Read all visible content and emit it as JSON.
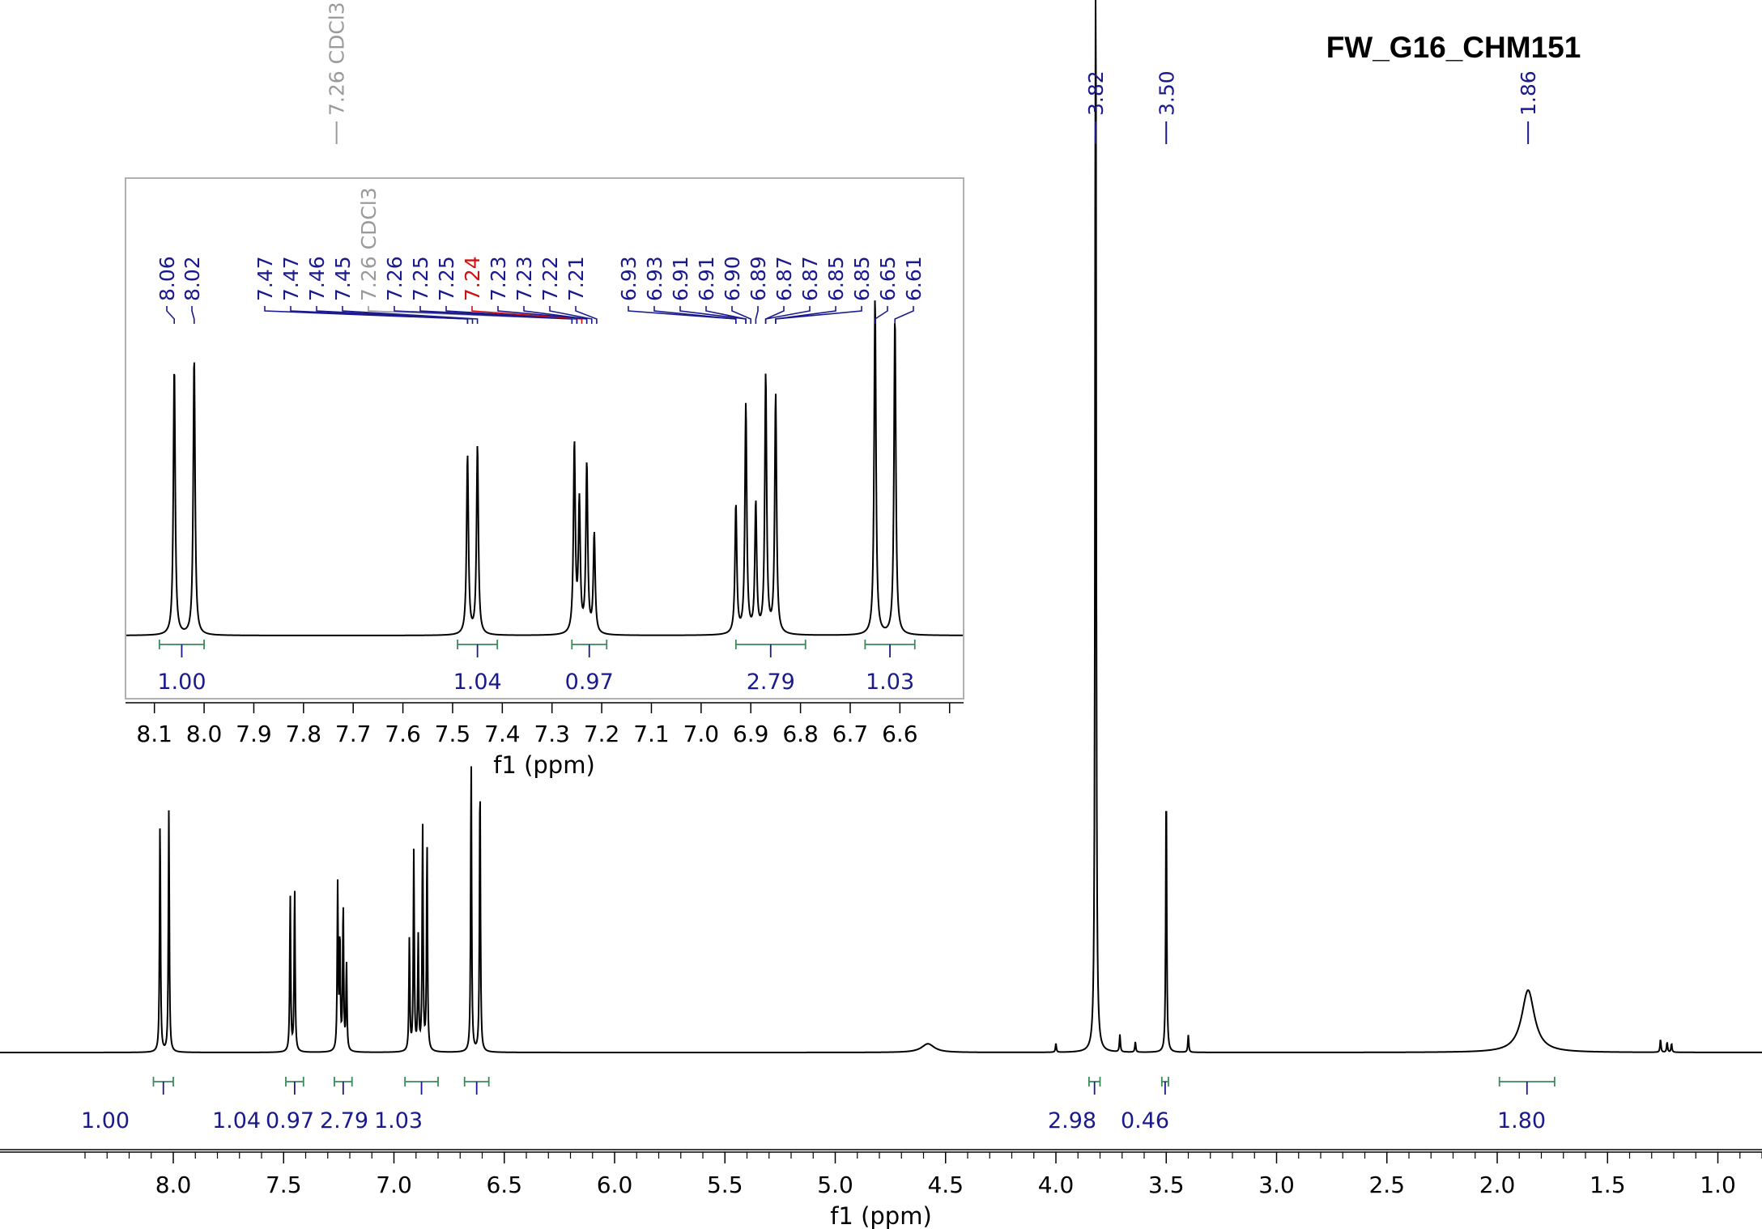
{
  "title": "FW_G16_CHM151",
  "chart_data": {
    "type": "line",
    "spectrum": "1H NMR",
    "xlabel": "f1 (ppm)",
    "xlim": [
      8.4,
      0.8
    ],
    "xticks": [
      "8.0",
      "7.5",
      "7.0",
      "6.5",
      "6.0",
      "5.5",
      "5.0",
      "4.5",
      "4.0",
      "3.5",
      "3.0",
      "2.5",
      "2.0",
      "1.5",
      "1.0"
    ],
    "peak_labels": [
      {
        "ppm": 7.26,
        "label": "7.26 CDCl3",
        "kind": "solvent"
      },
      {
        "ppm": 3.82,
        "label": "3.82",
        "kind": "normal"
      },
      {
        "ppm": 3.5,
        "label": "3.50",
        "kind": "normal"
      },
      {
        "ppm": 1.86,
        "label": "1.86",
        "kind": "normal"
      }
    ],
    "integrals": [
      {
        "from": 8.09,
        "to": 8.0,
        "value": "1.00"
      },
      {
        "from": 7.49,
        "to": 7.41,
        "value": "1.04"
      },
      {
        "from": 7.27,
        "to": 7.19,
        "value": "0.97"
      },
      {
        "from": 6.95,
        "to": 6.8,
        "value": "2.79"
      },
      {
        "from": 6.68,
        "to": 6.57,
        "value": "1.03"
      },
      {
        "from": 3.85,
        "to": 3.8,
        "value": "2.98"
      },
      {
        "from": 3.52,
        "to": 3.49,
        "value": "0.46"
      },
      {
        "from": 1.99,
        "to": 1.74,
        "value": "1.80"
      }
    ],
    "peaks": [
      {
        "ppm": 8.06,
        "height": 0.27
      },
      {
        "ppm": 8.02,
        "height": 0.28
      },
      {
        "ppm": 7.47,
        "height": 0.18
      },
      {
        "ppm": 7.45,
        "height": 0.19
      },
      {
        "ppm": 7.255,
        "height": 0.19
      },
      {
        "ppm": 7.245,
        "height": 0.13
      },
      {
        "ppm": 7.23,
        "height": 0.17
      },
      {
        "ppm": 7.215,
        "height": 0.1
      },
      {
        "ppm": 6.93,
        "height": 0.13
      },
      {
        "ppm": 6.91,
        "height": 0.23
      },
      {
        "ppm": 6.89,
        "height": 0.13
      },
      {
        "ppm": 6.87,
        "height": 0.26
      },
      {
        "ppm": 6.85,
        "height": 0.24
      },
      {
        "ppm": 6.65,
        "height": 0.34
      },
      {
        "ppm": 6.61,
        "height": 0.32
      },
      {
        "ppm": 3.82,
        "height": 1.6
      },
      {
        "ppm": 3.71,
        "height": 0.02
      },
      {
        "ppm": 3.64,
        "height": 0.012
      },
      {
        "ppm": 3.5,
        "height": 0.315
      },
      {
        "ppm": 3.4,
        "height": 0.02
      },
      {
        "ppm": 4.0,
        "height": 0.01
      },
      {
        "ppm": 1.86,
        "height": 0.072,
        "broad": true
      },
      {
        "ppm": 4.58,
        "height": 0.01,
        "broad": true
      },
      {
        "ppm": 1.26,
        "height": 0.015
      },
      {
        "ppm": 1.23,
        "height": 0.012
      },
      {
        "ppm": 1.21,
        "height": 0.01
      }
    ],
    "inset": {
      "xlabel": "f1 (ppm)",
      "xlim": [
        8.15,
        6.48
      ],
      "xticks": [
        "8.1",
        "8.0",
        "7.9",
        "7.8",
        "7.7",
        "7.6",
        "7.5",
        "7.4",
        "7.3",
        "7.2",
        "7.1",
        "7.0",
        "6.9",
        "6.8",
        "6.7",
        "6.6"
      ],
      "peak_labels": [
        {
          "ppm": 8.06,
          "label": "8.06",
          "kind": "normal"
        },
        {
          "ppm": 8.02,
          "label": "8.02",
          "kind": "normal"
        },
        {
          "ppm": 7.47,
          "label": "7.47",
          "kind": "normal"
        },
        {
          "ppm": 7.47,
          "label": "7.47",
          "kind": "normal"
        },
        {
          "ppm": 7.46,
          "label": "7.46",
          "kind": "normal"
        },
        {
          "ppm": 7.45,
          "label": "7.45",
          "kind": "normal"
        },
        {
          "ppm": 7.26,
          "label": "7.26 CDCl3",
          "kind": "solvent"
        },
        {
          "ppm": 7.26,
          "label": "7.26",
          "kind": "normal"
        },
        {
          "ppm": 7.25,
          "label": "7.25",
          "kind": "normal"
        },
        {
          "ppm": 7.25,
          "label": "7.25",
          "kind": "normal"
        },
        {
          "ppm": 7.24,
          "label": "7.24",
          "kind": "highlight"
        },
        {
          "ppm": 7.23,
          "label": "7.23",
          "kind": "normal"
        },
        {
          "ppm": 7.23,
          "label": "7.23",
          "kind": "normal"
        },
        {
          "ppm": 7.22,
          "label": "7.22",
          "kind": "normal"
        },
        {
          "ppm": 7.21,
          "label": "7.21",
          "kind": "normal"
        },
        {
          "ppm": 6.93,
          "label": "6.93",
          "kind": "normal"
        },
        {
          "ppm": 6.93,
          "label": "6.93",
          "kind": "normal"
        },
        {
          "ppm": 6.91,
          "label": "6.91",
          "kind": "normal"
        },
        {
          "ppm": 6.91,
          "label": "6.91",
          "kind": "normal"
        },
        {
          "ppm": 6.9,
          "label": "6.90",
          "kind": "normal"
        },
        {
          "ppm": 6.89,
          "label": "6.89",
          "kind": "normal"
        },
        {
          "ppm": 6.87,
          "label": "6.87",
          "kind": "normal"
        },
        {
          "ppm": 6.87,
          "label": "6.87",
          "kind": "normal"
        },
        {
          "ppm": 6.85,
          "label": "6.85",
          "kind": "normal"
        },
        {
          "ppm": 6.85,
          "label": "6.85",
          "kind": "normal"
        },
        {
          "ppm": 6.65,
          "label": "6.65",
          "kind": "normal"
        },
        {
          "ppm": 6.61,
          "label": "6.61",
          "kind": "normal"
        }
      ],
      "integrals": [
        {
          "from": 8.09,
          "to": 8.0,
          "value": "1.00"
        },
        {
          "from": 7.49,
          "to": 7.41,
          "value": "1.04"
        },
        {
          "from": 7.26,
          "to": 7.19,
          "value": "0.97"
        },
        {
          "from": 6.93,
          "to": 6.79,
          "value": "2.79"
        },
        {
          "from": 6.67,
          "to": 6.57,
          "value": "1.03"
        }
      ]
    },
    "colors": {
      "spectrum": "#000000",
      "labels": "#1a1a8c",
      "solvent": "#9a9a9a",
      "highlight": "#d01010",
      "integral": "#3a8a5a"
    }
  }
}
